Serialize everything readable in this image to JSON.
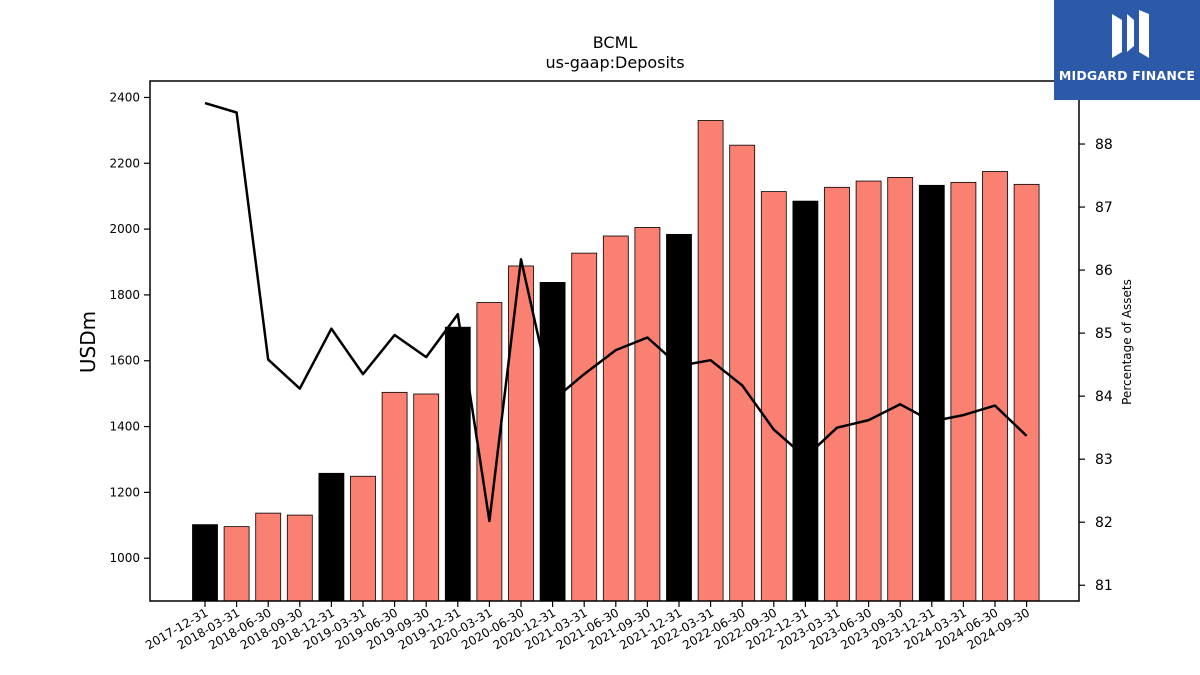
{
  "logo": {
    "text": "MIDGARD FINANCE",
    "icon": "midgard-logo-icon",
    "color": "#2c5aa8"
  },
  "chart_data": {
    "type": "bar",
    "title": "BCML",
    "subtitle": "us-gaap:Deposits",
    "ylabel": "USDm",
    "y2label": "Percentage of Assets",
    "ylim": [
      870,
      2450
    ],
    "y2lim": [
      80.75,
      89.0
    ],
    "yticks": [
      1000,
      1200,
      1400,
      1600,
      1800,
      2000,
      2200,
      2400
    ],
    "y2ticks": [
      81,
      82,
      83,
      84,
      85,
      86,
      87,
      88
    ],
    "categories": [
      "2017-12-31",
      "2018-03-31",
      "2018-06-30",
      "2018-09-30",
      "2018-12-31",
      "2019-03-31",
      "2019-06-30",
      "2019-09-30",
      "2019-12-31",
      "2020-03-31",
      "2020-06-30",
      "2020-12-31",
      "2021-03-31",
      "2021-06-30",
      "2021-09-30",
      "2021-12-31",
      "2022-03-31",
      "2022-06-30",
      "2022-09-30",
      "2022-12-31",
      "2023-03-31",
      "2023-06-30",
      "2023-09-30",
      "2023-12-31",
      "2024-03-31",
      "2024-06-30",
      "2024-09-30"
    ],
    "series": [
      {
        "type": "bar",
        "values": [
          1102,
          1096,
          1137,
          1131,
          1258,
          1249,
          1504,
          1499,
          1702,
          1777,
          1888,
          1838,
          1927,
          1979,
          2005,
          1984,
          2330,
          2255,
          2114,
          2085,
          2127,
          2146,
          2157,
          2133,
          2142,
          2175,
          2136
        ]
      },
      {
        "type": "line",
        "axis": "right",
        "values": [
          88.65,
          88.5,
          84.58,
          84.12,
          85.07,
          84.35,
          84.97,
          84.62,
          85.3,
          82.02,
          86.17,
          83.93,
          84.35,
          84.73,
          84.93,
          84.48,
          84.57,
          84.17,
          83.47,
          83.03,
          83.5,
          83.62,
          83.87,
          83.6,
          83.7,
          83.85,
          83.37
        ]
      }
    ],
    "colors": {
      "bar_default": "#fa8072",
      "bar_highlight": "#000000",
      "line": "#000000"
    },
    "highlight_categories": [
      "2017-12-31",
      "2018-12-31",
      "2019-12-31",
      "2020-12-31",
      "2021-12-31",
      "2022-12-31",
      "2023-12-31"
    ],
    "grid": false,
    "legend": "none"
  }
}
